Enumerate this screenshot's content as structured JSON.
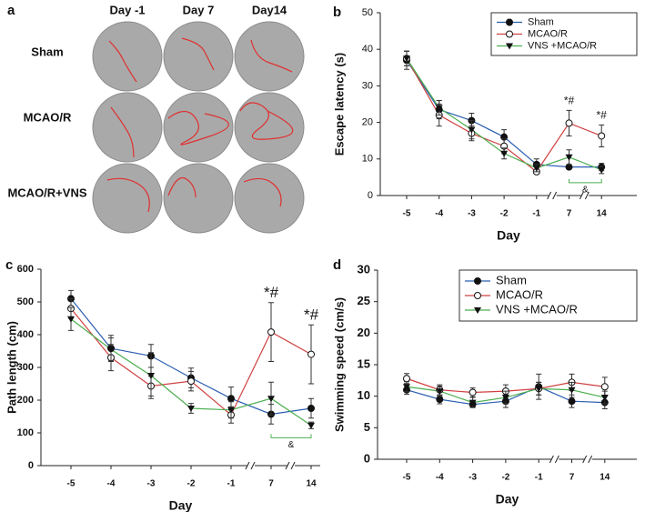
{
  "panel_a": {
    "label": "a",
    "columns": [
      "Day -1",
      "Day 7",
      "Day14"
    ],
    "rows": [
      "Sham",
      "MCAO/R",
      "MCAO/R+VNS"
    ]
  },
  "chart_data": [
    {
      "type": "line",
      "label": "b",
      "x_label": "Day",
      "y_label": "Escape latency (s)",
      "categories": [
        "-5",
        "-4",
        "-3",
        "-2",
        "-1",
        "7",
        "14"
      ],
      "ylim": [
        0,
        50
      ],
      "yticks": [
        0,
        10,
        20,
        30,
        40,
        50
      ],
      "legend": "upper right",
      "series": [
        {
          "name": "Sham",
          "color": "#2a5db0",
          "marker": "filled-circle",
          "values": [
            37,
            23.5,
            20.5,
            16,
            8.5,
            7.8,
            7.8
          ],
          "errors": [
            2.5,
            2.5,
            2,
            2,
            1.5,
            0.5,
            1
          ]
        },
        {
          "name": "MCAO/R",
          "color": "#d04040",
          "marker": "open-circle",
          "values": [
            37.5,
            22,
            17,
            13.5,
            6.5,
            19.8,
            16.3
          ],
          "errors": [
            2,
            3,
            2,
            2,
            0.5,
            3.5,
            3
          ]
        },
        {
          "name": "VNS +MCAO/R",
          "color": "#4caf50",
          "marker": "filled-triangle",
          "values": [
            37.5,
            24,
            18,
            11.5,
            7.5,
            10.5,
            7
          ],
          "errors": [
            2,
            2,
            2.5,
            1.5,
            1,
            2,
            1
          ]
        }
      ],
      "annotations": [
        "*#",
        "*#"
      ],
      "bracket": "&"
    },
    {
      "type": "line",
      "label": "c",
      "x_label": "Day",
      "y_label": "Path length (cm)",
      "categories": [
        "-5",
        "-4",
        "-3",
        "-2",
        "-1",
        "7",
        "14"
      ],
      "ylim": [
        0,
        600
      ],
      "yticks": [
        0,
        100,
        200,
        300,
        400,
        500,
        600
      ],
      "series": [
        {
          "name": "Sham",
          "color": "#2a5db0",
          "marker": "filled-circle",
          "values": [
            510,
            358,
            335,
            268,
            205,
            157,
            175
          ],
          "errors": [
            25,
            40,
            35,
            30,
            35,
            30,
            30
          ]
        },
        {
          "name": "MCAO/R",
          "color": "#d04040",
          "marker": "open-circle",
          "values": [
            480,
            330,
            243,
            258,
            155,
            408,
            340
          ],
          "errors": [
            30,
            40,
            30,
            30,
            25,
            90,
            90
          ]
        },
        {
          "name": "VNS +MCAO/R",
          "color": "#4caf50",
          "marker": "filled-triangle",
          "values": [
            448,
            355,
            275,
            175,
            170,
            205,
            123
          ],
          "errors": [
            35,
            35,
            70,
            15,
            25,
            50,
            10
          ]
        }
      ],
      "annotations": [
        "*#",
        "*#"
      ],
      "bracket": "&"
    },
    {
      "type": "line",
      "label": "d",
      "x_label": "Day",
      "y_label": "Swimming speed (cm/s)",
      "categories": [
        "-5",
        "-4",
        "-3",
        "-2",
        "-1",
        "7",
        "14"
      ],
      "ylim": [
        0,
        30
      ],
      "yticks": [
        0,
        5,
        10,
        15,
        20,
        25,
        30
      ],
      "legend": "upper right",
      "series": [
        {
          "name": "Sham",
          "color": "#2a5db0",
          "marker": "filled-circle",
          "values": [
            11,
            9.5,
            8.7,
            9.2,
            11.5,
            9.2,
            9
          ],
          "errors": [
            0.7,
            0.7,
            0.5,
            1,
            2,
            1,
            1
          ]
        },
        {
          "name": "MCAO/R",
          "color": "#d04040",
          "marker": "open-circle",
          "values": [
            12.8,
            11,
            10.6,
            10.8,
            11.2,
            12.2,
            11.5
          ],
          "errors": [
            0.8,
            0.8,
            0.7,
            1,
            1,
            1.3,
            1.5
          ]
        },
        {
          "name": "VNS +MCAO/R",
          "color": "#4caf50",
          "marker": "filled-triangle",
          "values": [
            11.5,
            10.8,
            9,
            9.8,
            11.2,
            11,
            9.8
          ],
          "errors": [
            0.8,
            0.8,
            0.8,
            1,
            1,
            1.2,
            1
          ]
        }
      ]
    }
  ]
}
